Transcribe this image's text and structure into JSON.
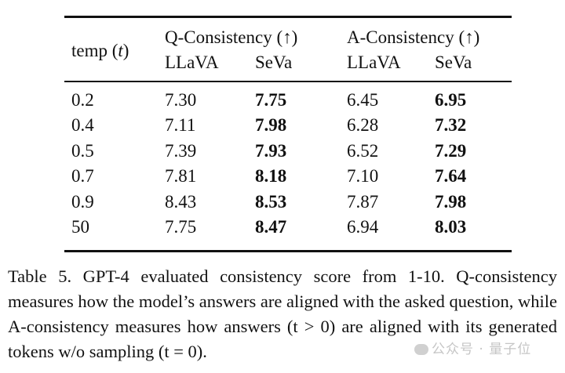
{
  "table": {
    "header": {
      "temp_label": "temp (",
      "temp_var": "t",
      "temp_close": ")",
      "groups": [
        "Q-Consistency (↑)",
        "A-Consistency (↑)"
      ],
      "subheaders": [
        "LLaVA",
        "SeVa",
        "LLaVA",
        "SeVa"
      ]
    },
    "rows": [
      {
        "temp": "0.2",
        "q_llava": "7.30",
        "q_seva": "7.75",
        "a_llava": "6.45",
        "a_seva": "6.95"
      },
      {
        "temp": "0.4",
        "q_llava": "7.11",
        "q_seva": "7.98",
        "a_llava": "6.28",
        "a_seva": "7.32"
      },
      {
        "temp": "0.5",
        "q_llava": "7.39",
        "q_seva": "7.93",
        "a_llava": "6.52",
        "a_seva": "7.29"
      },
      {
        "temp": "0.7",
        "q_llava": "7.81",
        "q_seva": "8.18",
        "a_llava": "7.10",
        "a_seva": "7.64"
      },
      {
        "temp": "0.9",
        "q_llava": "8.43",
        "q_seva": "8.53",
        "a_llava": "7.87",
        "a_seva": "7.98"
      },
      {
        "temp": "50",
        "q_llava": "7.75",
        "q_seva": "8.47",
        "a_llava": "6.94",
        "a_seva": "8.03"
      }
    ]
  },
  "caption": {
    "text": "Table 5.  GPT-4 evaluated consistency score from 1-10. Q-consistency measures how the model’s answers are aligned with the asked question, while A-consistency measures how answers (t > 0) are aligned with its generated tokens w/o sampling (t = 0)."
  },
  "watermark": {
    "text": "公众号 · 量子位"
  }
}
